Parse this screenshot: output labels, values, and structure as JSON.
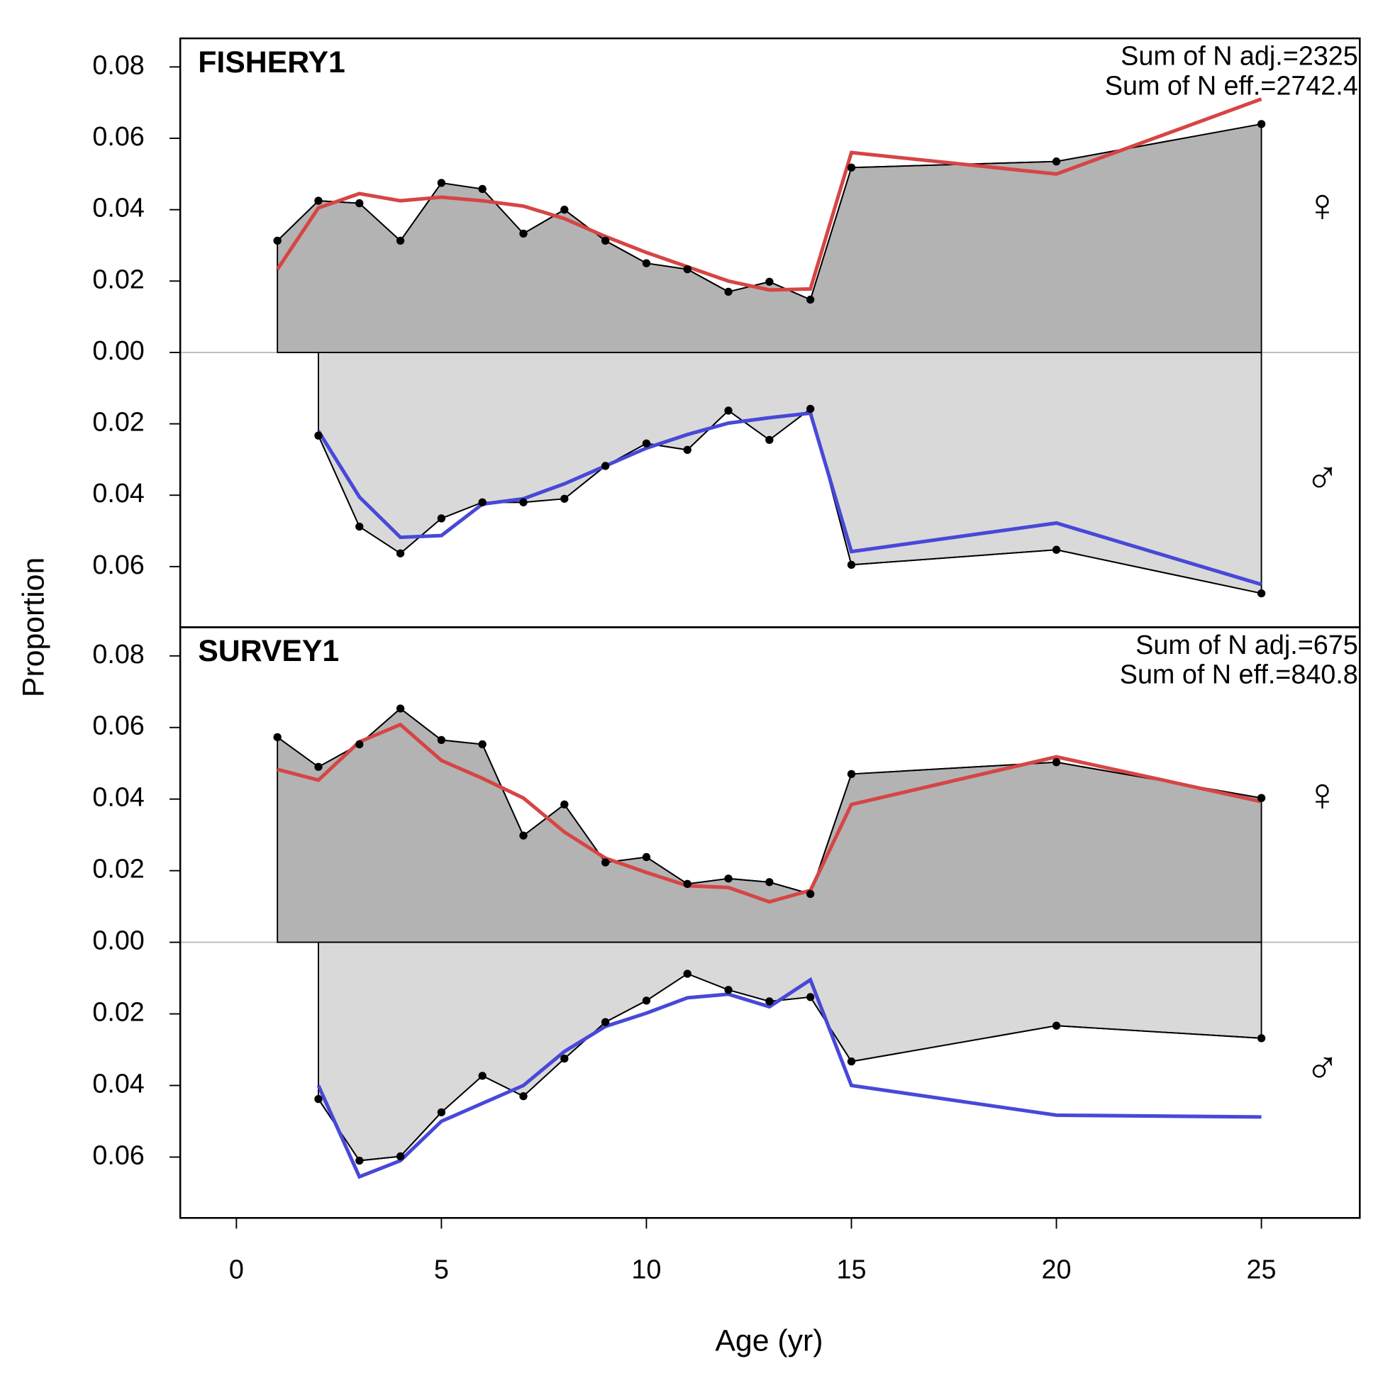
{
  "axis_labels": {
    "x": "Age (yr)",
    "y": "Proportion"
  },
  "chart_data": [
    {
      "type": "area",
      "title": "FISHERY1",
      "annotations": [
        "Sum of N adj.=2325",
        "Sum of N eff.=2742.4"
      ],
      "xlim": [
        -1.37,
        27.4
      ],
      "ylim": [
        -0.077,
        0.088
      ],
      "yticks": [
        {
          "value": -0.06,
          "label": "0.06"
        },
        {
          "value": -0.04,
          "label": "0.04"
        },
        {
          "value": -0.02,
          "label": "0.02"
        },
        {
          "value": 0,
          "label": "0.00"
        },
        {
          "value": 0.02,
          "label": "0.02"
        },
        {
          "value": 0.04,
          "label": "0.04"
        },
        {
          "value": 0.06,
          "label": "0.06"
        },
        {
          "value": 0.08,
          "label": "0.08"
        }
      ],
      "series": [
        {
          "name": "♀",
          "direction": "up",
          "fill": "#b3b3b3",
          "color": "#d64545",
          "symbol_color": "#cc2222",
          "x": [
            1,
            2,
            3,
            4,
            5,
            6,
            7,
            8,
            9,
            10,
            11,
            12,
            13,
            14,
            15,
            20,
            25
          ],
          "observed": [
            0.0313,
            0.0425,
            0.0418,
            0.0313,
            0.0475,
            0.0458,
            0.0333,
            0.04,
            0.0313,
            0.025,
            0.0233,
            0.017,
            0.0198,
            0.0148,
            0.0518,
            0.0535,
            0.064
          ],
          "expected": [
            0.0233,
            0.0405,
            0.0445,
            0.0425,
            0.0435,
            0.0425,
            0.041,
            0.0375,
            0.0325,
            0.028,
            0.024,
            0.02,
            0.0175,
            0.0178,
            0.056,
            0.05,
            0.071
          ]
        },
        {
          "name": "♂",
          "direction": "down",
          "fill": "#d9d9d9",
          "color": "#4848d8",
          "symbol_color": "#2222cc",
          "x": [
            2,
            3,
            4,
            5,
            6,
            7,
            8,
            9,
            10,
            11,
            12,
            13,
            14,
            15,
            20,
            25
          ],
          "observed": [
            0.0233,
            0.0488,
            0.0563,
            0.0465,
            0.042,
            0.042,
            0.041,
            0.0318,
            0.0255,
            0.0273,
            0.0163,
            0.0245,
            0.0158,
            0.0595,
            0.0553,
            0.0675
          ],
          "expected": [
            0.022,
            0.0405,
            0.0518,
            0.0513,
            0.0425,
            0.041,
            0.0368,
            0.0318,
            0.0268,
            0.023,
            0.0198,
            0.0183,
            0.017,
            0.0558,
            0.0478,
            0.065
          ]
        }
      ]
    },
    {
      "type": "area",
      "title": "SURVEY1",
      "annotations": [
        "Sum of N adj.=675",
        "Sum of N eff.=840.8"
      ],
      "xlim": [
        -1.37,
        27.4
      ],
      "xticks": [
        0,
        5,
        10,
        15,
        20,
        25
      ],
      "ylim": [
        -0.077,
        0.088
      ],
      "yticks": [
        {
          "value": -0.06,
          "label": "0.06"
        },
        {
          "value": -0.04,
          "label": "0.04"
        },
        {
          "value": -0.02,
          "label": "0.02"
        },
        {
          "value": 0,
          "label": "0.00"
        },
        {
          "value": 0.02,
          "label": "0.02"
        },
        {
          "value": 0.04,
          "label": "0.04"
        },
        {
          "value": 0.06,
          "label": "0.06"
        },
        {
          "value": 0.08,
          "label": "0.08"
        }
      ],
      "series": [
        {
          "name": "♀",
          "direction": "up",
          "fill": "#b3b3b3",
          "color": "#d64545",
          "symbol_color": "#cc2222",
          "x": [
            1,
            2,
            3,
            4,
            5,
            6,
            7,
            8,
            9,
            10,
            11,
            12,
            13,
            14,
            15,
            20,
            25
          ],
          "observed": [
            0.0573,
            0.049,
            0.0553,
            0.0653,
            0.0565,
            0.0553,
            0.0298,
            0.0385,
            0.0223,
            0.0238,
            0.0163,
            0.0178,
            0.0168,
            0.0135,
            0.047,
            0.0503,
            0.0403
          ],
          "expected": [
            0.0483,
            0.0453,
            0.056,
            0.0608,
            0.0508,
            0.0458,
            0.0403,
            0.0308,
            0.0235,
            0.0195,
            0.0158,
            0.0153,
            0.0113,
            0.0145,
            0.0385,
            0.0518,
            0.0393
          ]
        },
        {
          "name": "♂",
          "direction": "down",
          "fill": "#d9d9d9",
          "color": "#4848d8",
          "symbol_color": "#2222cc",
          "x": [
            2,
            3,
            4,
            5,
            6,
            7,
            8,
            9,
            10,
            11,
            12,
            13,
            14,
            15,
            20,
            25
          ],
          "observed": [
            0.0438,
            0.061,
            0.0598,
            0.0475,
            0.0373,
            0.043,
            0.0325,
            0.0223,
            0.0163,
            0.0088,
            0.0133,
            0.0165,
            0.0153,
            0.0333,
            0.0233,
            0.0268
          ],
          "expected": [
            0.04,
            0.0655,
            0.061,
            0.05,
            0.045,
            0.04,
            0.0305,
            0.0235,
            0.0198,
            0.0155,
            0.0145,
            0.018,
            0.0105,
            0.04,
            0.0483,
            0.0488
          ]
        }
      ]
    }
  ]
}
